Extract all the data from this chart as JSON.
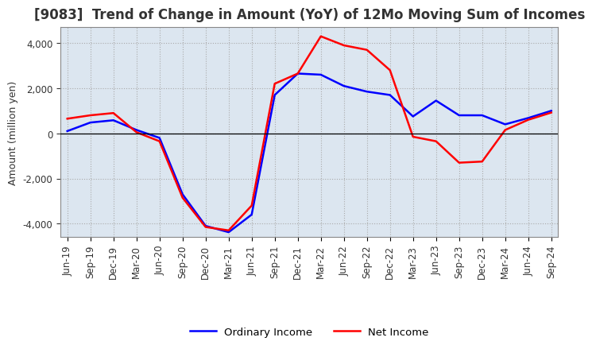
{
  "title": "[9083]  Trend of Change in Amount (YoY) of 12Mo Moving Sum of Incomes",
  "ylabel": "Amount (million yen)",
  "xlabels": [
    "Jun-19",
    "Sep-19",
    "Dec-19",
    "Mar-20",
    "Jun-20",
    "Sep-20",
    "Dec-20",
    "Mar-21",
    "Jun-21",
    "Sep-21",
    "Dec-21",
    "Mar-22",
    "Jun-22",
    "Sep-22",
    "Dec-22",
    "Mar-23",
    "Jun-23",
    "Sep-23",
    "Dec-23",
    "Mar-24",
    "Jun-24",
    "Sep-24"
  ],
  "ordinary_income": [
    100,
    480,
    580,
    150,
    -200,
    -2700,
    -4100,
    -4380,
    -3600,
    1700,
    2650,
    2600,
    2100,
    1850,
    1700,
    750,
    1450,
    800,
    800,
    400,
    680,
    1000
  ],
  "net_income": [
    650,
    800,
    900,
    50,
    -350,
    -2850,
    -4150,
    -4300,
    -3200,
    2200,
    2650,
    4300,
    3900,
    3700,
    2800,
    -150,
    -350,
    -1300,
    -1250,
    150,
    600,
    920
  ],
  "ordinary_color": "#0000ff",
  "net_color": "#ff0000",
  "ylim": [
    -4600,
    4700
  ],
  "yticks": [
    -4000,
    -2000,
    0,
    2000,
    4000
  ],
  "plot_bg_color": "#dce6f0",
  "figure_bg_color": "#ffffff",
  "grid_color": "#aaaaaa",
  "line_width": 1.8,
  "legend_ordinary": "Ordinary Income",
  "legend_net": "Net Income",
  "title_fontsize": 12,
  "label_fontsize": 9,
  "tick_fontsize": 8.5
}
